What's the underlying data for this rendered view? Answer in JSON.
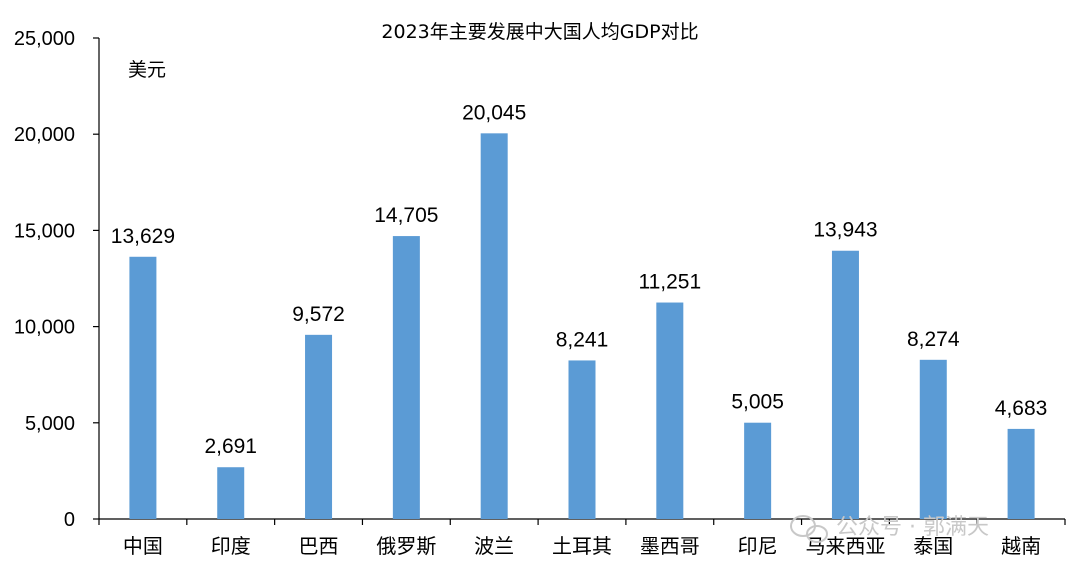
{
  "chart_data": {
    "type": "bar",
    "title": "2023年主要发展中大国人均GDP对比",
    "unit_label": "美元",
    "categories": [
      "中国",
      "印度",
      "巴西",
      "俄罗斯",
      "波兰",
      "土耳其",
      "墨西哥",
      "印尼",
      "马来西亚",
      "泰国",
      "越南"
    ],
    "values": [
      13629,
      2691,
      9572,
      14705,
      20045,
      8241,
      11251,
      5005,
      13943,
      8274,
      4683
    ],
    "data_labels": [
      "13,629",
      "2,691",
      "9,572",
      "14,705",
      "20,045",
      "8,241",
      "11,251",
      "5,005",
      "13,943",
      "8,274",
      "4,683"
    ],
    "yticks": [
      "0",
      "5,000",
      "10,000",
      "15,000",
      "20,000",
      "25,000"
    ],
    "ylim": [
      0,
      25000
    ],
    "grid": false,
    "bar_color": "#5b9bd5"
  },
  "watermark": {
    "text": "公众号 · 郭满天"
  }
}
